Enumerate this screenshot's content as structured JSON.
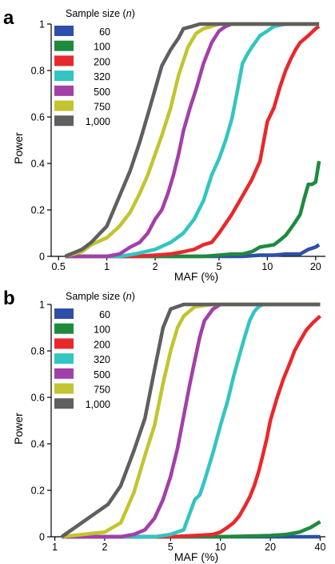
{
  "chart_data": [
    {
      "panel": "a",
      "type": "line",
      "title": "",
      "xlabel": "MAF (%)",
      "ylabel": "Power",
      "xscale": "log",
      "xlim": [
        0.45,
        23
      ],
      "ylim": [
        0,
        1
      ],
      "xticks": [
        0.5,
        1,
        2,
        5,
        10,
        20
      ],
      "xtick_labels": [
        "0.5",
        "1",
        "2",
        "5",
        "10",
        "20"
      ],
      "yticks": [
        0,
        0.2,
        0.4,
        0.6,
        0.8,
        1
      ],
      "ytick_labels": [
        "0",
        "0.2",
        "0.4",
        "0.6",
        "0.8",
        "1"
      ],
      "grid": false,
      "legend": {
        "title": "Sample size (n)",
        "title_prefix": "Sample size (",
        "title_var": "n",
        "title_suffix": ")",
        "placement": "top-left"
      },
      "series": [
        {
          "name": "60",
          "color": "#2e4fa8",
          "x": [
            0.55,
            1,
            3,
            5,
            7,
            9,
            11,
            13,
            14,
            16,
            17,
            18,
            19,
            20,
            21
          ],
          "y": [
            0,
            0,
            0,
            0,
            0,
            0.005,
            0.005,
            0.01,
            0.01,
            0.01,
            0.02,
            0.03,
            0.035,
            0.04,
            0.05
          ]
        },
        {
          "name": "100",
          "color": "#1e8a3e",
          "x": [
            0.55,
            1,
            2,
            3,
            4,
            5,
            6,
            7,
            8,
            9,
            10,
            11,
            12,
            13,
            14,
            15,
            16,
            17,
            18,
            19,
            20,
            21
          ],
          "y": [
            0,
            0,
            0,
            0,
            0,
            0.005,
            0.01,
            0.01,
            0.02,
            0.04,
            0.045,
            0.05,
            0.07,
            0.09,
            0.12,
            0.15,
            0.18,
            0.25,
            0.31,
            0.31,
            0.32,
            0.41
          ]
        },
        {
          "name": "200",
          "color": "#e8292c",
          "x": [
            0.55,
            1.5,
            2,
            2.5,
            3,
            3.5,
            4,
            4.5,
            5,
            6,
            7,
            8,
            9,
            10,
            11,
            12,
            13,
            14,
            15,
            16,
            18,
            20,
            21
          ],
          "y": [
            0,
            0,
            0.005,
            0.01,
            0.02,
            0.03,
            0.05,
            0.06,
            0.1,
            0.18,
            0.26,
            0.33,
            0.41,
            0.58,
            0.64,
            0.73,
            0.8,
            0.85,
            0.89,
            0.92,
            0.95,
            0.98,
            0.99
          ]
        },
        {
          "name": "320",
          "color": "#32c5c2",
          "x": [
            0.55,
            1.2,
            1.5,
            2,
            2.5,
            3,
            3.5,
            4,
            4.5,
            5,
            5.5,
            6,
            6.5,
            7,
            7.5,
            8,
            9,
            10,
            11,
            13,
            16,
            21
          ],
          "y": [
            0,
            0,
            0.01,
            0.03,
            0.06,
            0.1,
            0.16,
            0.24,
            0.35,
            0.42,
            0.5,
            0.59,
            0.71,
            0.83,
            0.87,
            0.9,
            0.95,
            0.97,
            0.99,
            1,
            1,
            1
          ]
        },
        {
          "name": "500",
          "color": "#a33fa8",
          "x": [
            0.55,
            1,
            1.2,
            1.4,
            1.6,
            1.8,
            2,
            2.2,
            2.4,
            2.6,
            2.8,
            3,
            3.3,
            3.6,
            4,
            4.5,
            5,
            5.5,
            6,
            7,
            10,
            21
          ],
          "y": [
            0,
            0,
            0.01,
            0.04,
            0.06,
            0.1,
            0.16,
            0.2,
            0.27,
            0.35,
            0.44,
            0.54,
            0.64,
            0.72,
            0.83,
            0.92,
            0.97,
            0.99,
            1,
            1,
            1,
            1
          ]
        },
        {
          "name": "750",
          "color": "#c3c42f",
          "x": [
            0.55,
            0.7,
            0.8,
            1,
            1.2,
            1.4,
            1.6,
            1.8,
            2,
            2.2,
            2.5,
            2.8,
            3.2,
            3.6,
            4,
            4.5,
            5,
            6,
            10,
            21
          ],
          "y": [
            0,
            0.02,
            0.05,
            0.08,
            0.13,
            0.19,
            0.27,
            0.35,
            0.44,
            0.52,
            0.64,
            0.78,
            0.9,
            0.96,
            0.98,
            0.99,
            1,
            1,
            1,
            1
          ]
        },
        {
          "name": "1,000",
          "color": "#5f5f5f",
          "x": [
            0.55,
            0.7,
            0.8,
            1,
            1.2,
            1.4,
            1.6,
            1.8,
            2,
            2.2,
            2.5,
            2.8,
            3,
            3.4,
            3.8,
            4.5,
            6,
            10,
            21
          ],
          "y": [
            0,
            0.03,
            0.06,
            0.13,
            0.26,
            0.37,
            0.49,
            0.61,
            0.72,
            0.82,
            0.89,
            0.94,
            0.98,
            0.99,
            1,
            1,
            1,
            1,
            1
          ]
        }
      ]
    },
    {
      "panel": "b",
      "type": "line",
      "title": "",
      "xlabel": "MAF (%)",
      "ylabel": "Power",
      "xscale": "log",
      "xlim": [
        0.95,
        43
      ],
      "ylim": [
        0,
        1
      ],
      "xticks": [
        1,
        2,
        5,
        10,
        20,
        40
      ],
      "xtick_labels": [
        "1",
        "2",
        "5",
        "10",
        "20",
        "40"
      ],
      "yticks": [
        0,
        0.2,
        0.4,
        0.6,
        0.8,
        1
      ],
      "ytick_labels": [
        "0",
        "0.2",
        "0.4",
        "0.6",
        "0.8",
        "1"
      ],
      "grid": false,
      "legend": {
        "title": "Sample size (n)",
        "title_prefix": "Sample size (",
        "title_var": "n",
        "title_suffix": ")",
        "placement": "top-left"
      },
      "series": [
        {
          "name": "60",
          "color": "#2e4fa8",
          "x": [
            1.1,
            5,
            10,
            20,
            30,
            40
          ],
          "y": [
            0,
            0,
            0,
            0,
            0,
            0
          ]
        },
        {
          "name": "100",
          "color": "#1e8a3e",
          "x": [
            1.1,
            5,
            10,
            20,
            25,
            30,
            35,
            40
          ],
          "y": [
            0,
            0,
            0,
            0.005,
            0.01,
            0.02,
            0.04,
            0.065
          ]
        },
        {
          "name": "200",
          "color": "#e8292c",
          "x": [
            1.1,
            5,
            7,
            9,
            10,
            11,
            12,
            13,
            14,
            15,
            16,
            17,
            18,
            19,
            20,
            22,
            24,
            26,
            28,
            30,
            33,
            36,
            40
          ],
          "y": [
            0,
            0,
            0.005,
            0.01,
            0.02,
            0.04,
            0.06,
            0.09,
            0.13,
            0.17,
            0.22,
            0.28,
            0.35,
            0.42,
            0.5,
            0.6,
            0.68,
            0.74,
            0.8,
            0.84,
            0.89,
            0.92,
            0.95
          ]
        },
        {
          "name": "320",
          "color": "#32c5c2",
          "x": [
            1.1,
            4,
            5,
            6,
            7,
            7.5,
            8,
            9,
            10,
            11,
            12,
            13,
            14,
            15,
            16,
            17,
            18,
            20,
            25,
            40
          ],
          "y": [
            0,
            0,
            0.01,
            0.03,
            0.16,
            0.18,
            0.24,
            0.36,
            0.48,
            0.58,
            0.69,
            0.78,
            0.86,
            0.93,
            0.97,
            0.99,
            1,
            1,
            1,
            1
          ]
        },
        {
          "name": "500",
          "color": "#a33fa8",
          "x": [
            1.1,
            2.5,
            3,
            3.5,
            4,
            4.5,
            5,
            5.5,
            6,
            6.5,
            7,
            7.5,
            8,
            9,
            10,
            12,
            40
          ],
          "y": [
            0,
            0,
            0.01,
            0.03,
            0.08,
            0.16,
            0.26,
            0.38,
            0.52,
            0.65,
            0.76,
            0.86,
            0.93,
            0.98,
            1,
            1,
            1
          ]
        },
        {
          "name": "750",
          "color": "#c3c42f",
          "x": [
            1.1,
            2,
            2.5,
            3,
            3.5,
            4,
            4.5,
            5,
            5.5,
            6,
            7,
            9,
            40
          ],
          "y": [
            0,
            0.02,
            0.06,
            0.19,
            0.35,
            0.48,
            0.66,
            0.8,
            0.9,
            0.95,
            0.99,
            1,
            1
          ]
        },
        {
          "name": "1,000",
          "color": "#5f5f5f",
          "x": [
            1.1,
            2.1,
            2.5,
            3,
            3.5,
            4,
            4.5,
            5,
            6,
            8,
            40
          ],
          "y": [
            0,
            0.14,
            0.22,
            0.37,
            0.51,
            0.72,
            0.9,
            0.98,
            1,
            1,
            1
          ]
        }
      ]
    }
  ]
}
